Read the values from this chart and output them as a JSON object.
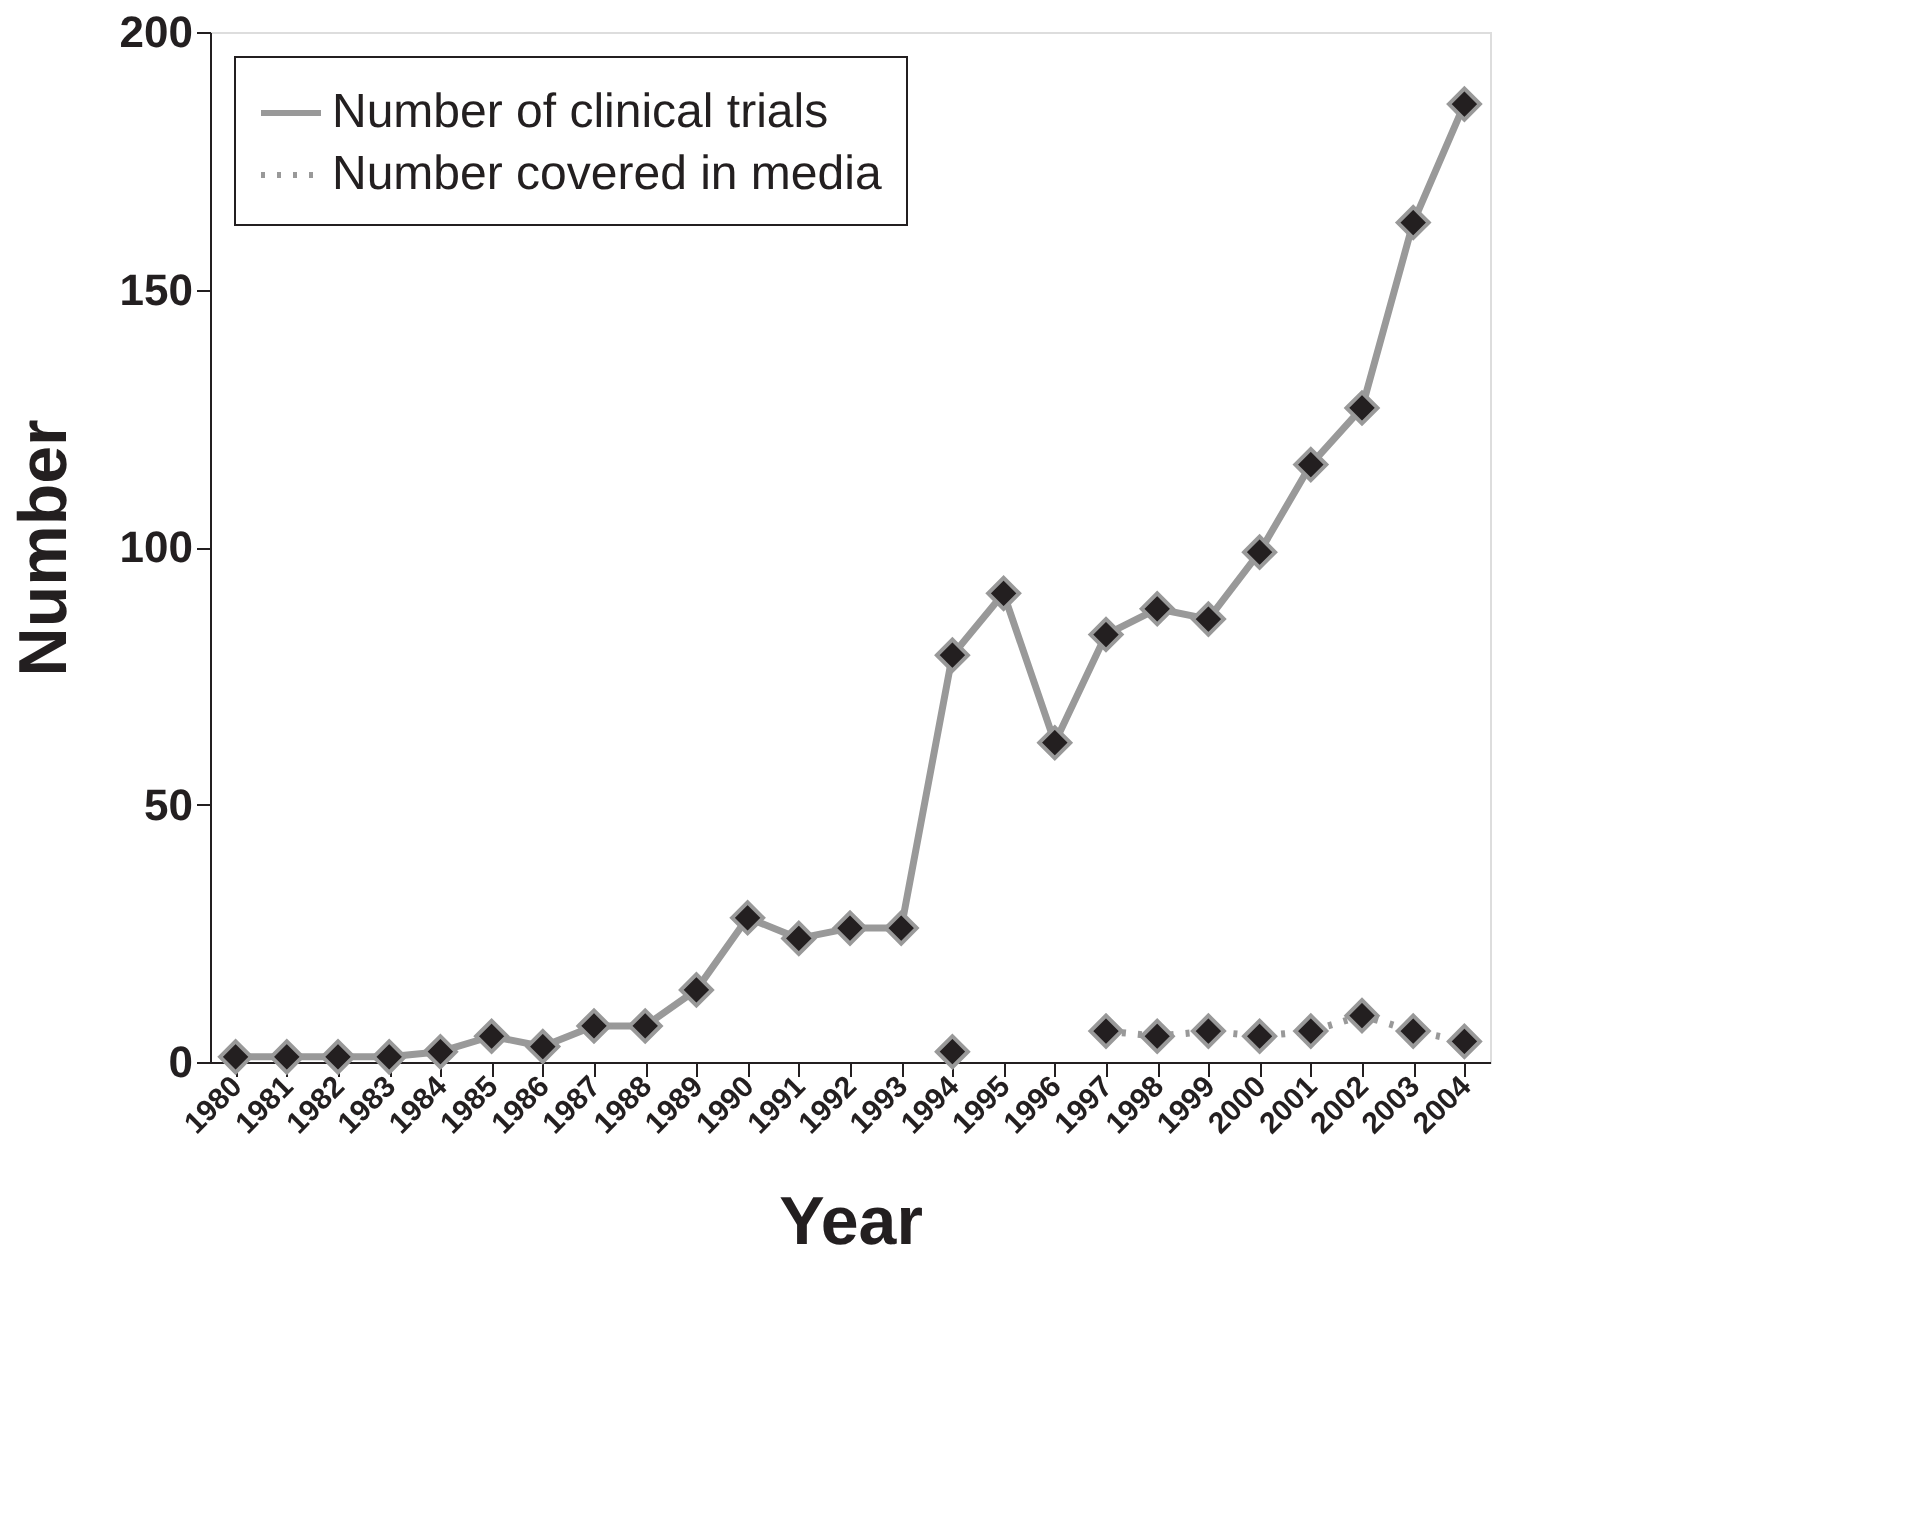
{
  "chart_data": {
    "type": "line",
    "xlabel": "Year",
    "ylabel": "Number",
    "categories": [
      "1980",
      "1981",
      "1982",
      "1983",
      "1984",
      "1985",
      "1986",
      "1987",
      "1988",
      "1989",
      "1990",
      "1991",
      "1992",
      "1993",
      "1994",
      "1995",
      "1996",
      "1997",
      "1998",
      "1999",
      "2000",
      "2001",
      "2002",
      "2003",
      "2004"
    ],
    "series": [
      {
        "name": "Number of clinical trials",
        "color": "#999999",
        "line_style": "solid",
        "values": [
          1,
          1,
          1,
          1,
          2,
          5,
          3,
          7,
          7,
          14,
          28,
          24,
          26,
          26,
          79,
          91,
          62,
          83,
          88,
          86,
          99,
          116,
          127,
          163,
          186
        ]
      },
      {
        "name": "Number covered in media",
        "color": "#999999",
        "line_style": "dotted",
        "values": [
          null,
          null,
          null,
          null,
          null,
          null,
          null,
          null,
          null,
          null,
          null,
          null,
          null,
          null,
          2,
          null,
          null,
          6,
          5,
          6,
          5,
          6,
          9,
          6,
          4
        ]
      }
    ],
    "ylim": [
      0,
      200
    ],
    "yticks": [
      0,
      50,
      100,
      150,
      200
    ],
    "grid": false,
    "legend": "top left",
    "marker": "diamond"
  }
}
